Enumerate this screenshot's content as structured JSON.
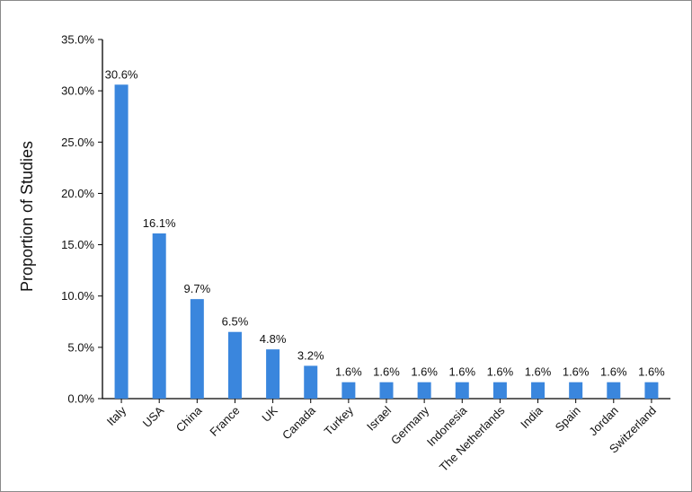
{
  "chart_data": {
    "type": "bar",
    "title": "",
    "xlabel": "",
    "ylabel": "Proportion of Studies",
    "ylim": [
      0,
      35
    ],
    "yticks": [
      "0.0%",
      "5.0%",
      "10.0%",
      "15.0%",
      "20.0%",
      "25.0%",
      "30.0%",
      "35.0%"
    ],
    "categories": [
      "Italy",
      "USA",
      "China",
      "France",
      "UK",
      "Canada",
      "Turkey",
      "Israel",
      "Germany",
      "Indonesia",
      "The Netherlands",
      "India",
      "Spain",
      "Jordan",
      "Switzerland"
    ],
    "values": [
      30.6,
      16.1,
      9.7,
      6.5,
      4.8,
      3.2,
      1.6,
      1.6,
      1.6,
      1.6,
      1.6,
      1.6,
      1.6,
      1.6,
      1.6
    ],
    "data_labels": [
      "30.6%",
      "16.1%",
      "9.7%",
      "6.5%",
      "4.8%",
      "3.2%",
      "1.6%",
      "1.6%",
      "1.6%",
      "1.6%",
      "1.6%",
      "1.6%",
      "1.6%",
      "1.6%",
      "1.6%"
    ],
    "bar_color": "#3a86dd",
    "grid": false,
    "legend": "none"
  }
}
